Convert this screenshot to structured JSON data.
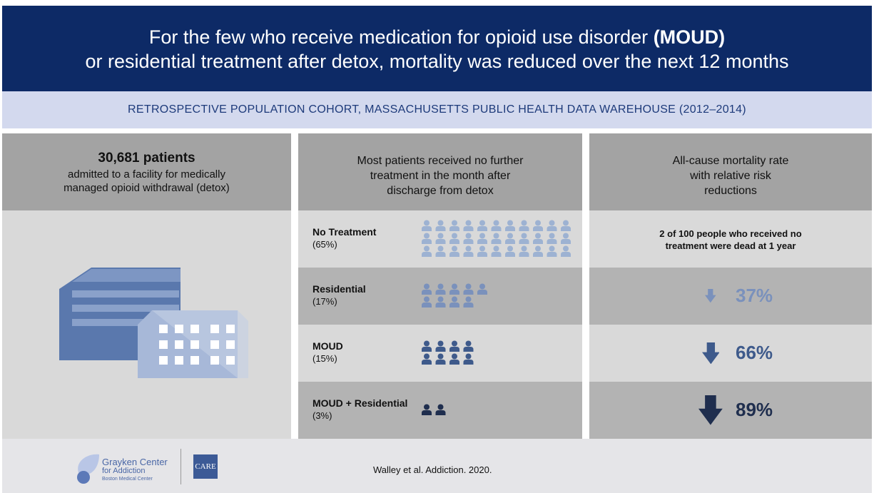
{
  "header": {
    "title_start": "For the few who receive medication for opioid use disorder ",
    "title_bold": "(MOUD)",
    "title_end": "or residential treatment after detox, mortality was reduced over the next 12 months",
    "subtitle": "RETROSPECTIVE POPULATION COHORT, MASSACHUSETTS PUBLIC HEALTH DATA WAREHOUSE (2012–2014)"
  },
  "left": {
    "heading": "30,681 patients",
    "text": "admitted to a facility for medically managed opioid withdrawal (detox)"
  },
  "middle": {
    "heading": "Most patients received no further treatment in the month after discharge from detox"
  },
  "right": {
    "heading": "All-cause mortality rate with relative risk reductions",
    "note": "2 of 100 people who received no treatment were dead at 1 year"
  },
  "rows": [
    {
      "label": "No Treatment",
      "share": "(65%)",
      "icons": 33,
      "color": "#9db2d2"
    },
    {
      "label": "Residential",
      "share": "(17%)",
      "icons": 9,
      "color": "#7a91bc",
      "reduction": "37%"
    },
    {
      "label": "MOUD",
      "share": "(15%)",
      "icons": 8,
      "color": "#3e5a8b",
      "reduction": "66%"
    },
    {
      "label": "MOUD + Residential",
      "share": "(3%)",
      "icons": 2,
      "color": "#1f2e4e",
      "reduction": "89%"
    }
  ],
  "footer": {
    "logo_line1": "Grayken Center",
    "logo_line2": "for Addiction",
    "logo_line3": "Boston Medical Center",
    "care_logo": "CARE",
    "citation": "Walley et al. Addiction. 2020."
  }
}
